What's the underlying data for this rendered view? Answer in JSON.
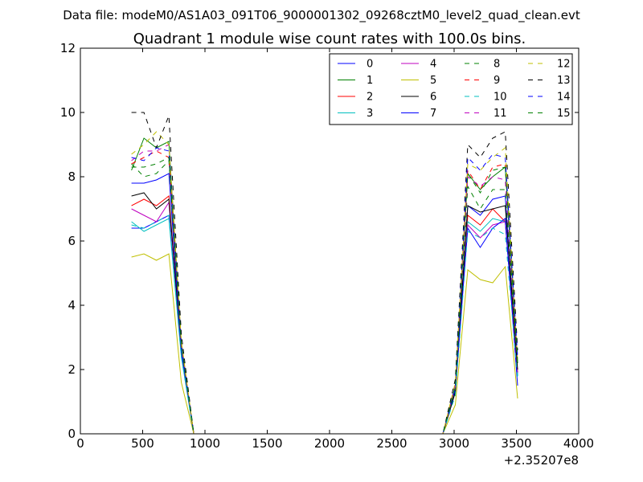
{
  "figure": {
    "suptitle": "Data file: modeM0/AS1A03_091T06_9000001302_09268cztM0_level2_quad_clean.evt"
  },
  "chart_data": {
    "type": "line",
    "title": "Quadrant 1 module wise count rates with 100.0s bins.",
    "xlabel": "",
    "ylabel": "",
    "x_offset_label": "+2.35207e8",
    "xlim": [
      0,
      4000
    ],
    "ylim": [
      0,
      12
    ],
    "xticks": [
      0,
      500,
      1000,
      1500,
      2000,
      2500,
      3000,
      3500,
      4000
    ],
    "yticks": [
      0,
      2,
      4,
      6,
      8,
      10,
      12
    ],
    "grid": false,
    "legend_position": "top-right",
    "legend_columns": 4,
    "x": [
      410,
      510,
      610,
      710,
      810,
      910,
      1010,
      1510,
      2010,
      2510,
      2910,
      3010,
      3110,
      3210,
      3310,
      3410,
      3510
    ],
    "series": [
      {
        "name": "0",
        "color": "#0000ff",
        "dash": "solid",
        "values": [
          6.4,
          6.4,
          6.6,
          6.8,
          2.5,
          0,
          0,
          0,
          0,
          0,
          0,
          1.4,
          7.1,
          6.8,
          7.3,
          7.4,
          1.8
        ]
      },
      {
        "name": "1",
        "color": "#008000",
        "dash": "solid",
        "values": [
          8.2,
          9.2,
          8.9,
          9.1,
          2.8,
          0,
          0,
          0,
          0,
          0,
          0,
          1.4,
          8.1,
          7.6,
          8.0,
          8.3,
          2.2
        ]
      },
      {
        "name": "2",
        "color": "#ff0000",
        "dash": "solid",
        "values": [
          7.1,
          7.3,
          7.1,
          7.4,
          2.6,
          0,
          0,
          0,
          0,
          0,
          0,
          1.3,
          6.8,
          6.5,
          7.0,
          6.6,
          1.9
        ]
      },
      {
        "name": "3",
        "color": "#00bfbf",
        "dash": "solid",
        "values": [
          6.6,
          6.3,
          6.5,
          6.7,
          2.4,
          0,
          0,
          0,
          0,
          0,
          0,
          1.3,
          6.6,
          6.3,
          6.7,
          6.6,
          1.8
        ]
      },
      {
        "name": "4",
        "color": "#bf00bf",
        "dash": "solid",
        "values": [
          7.0,
          6.8,
          6.6,
          7.2,
          2.6,
          0,
          0,
          0,
          0,
          0,
          0,
          1.3,
          6.5,
          6.1,
          6.5,
          6.6,
          1.9
        ]
      },
      {
        "name": "5",
        "color": "#bfbf00",
        "dash": "solid",
        "values": [
          5.5,
          5.6,
          5.4,
          5.6,
          1.6,
          0,
          0,
          0,
          0,
          0,
          0,
          0.9,
          5.1,
          4.8,
          4.7,
          5.2,
          1.1
        ]
      },
      {
        "name": "6",
        "color": "#000000",
        "dash": "solid",
        "values": [
          7.4,
          7.5,
          7.0,
          7.3,
          2.7,
          0,
          0,
          0,
          0,
          0,
          0,
          1.3,
          7.1,
          6.9,
          7.0,
          7.1,
          2.0
        ]
      },
      {
        "name": "7",
        "color": "#0000ff",
        "dash": "solid",
        "values": [
          7.8,
          7.8,
          7.9,
          8.1,
          2.6,
          0,
          0,
          0,
          0,
          0,
          0,
          1.4,
          6.4,
          5.8,
          6.4,
          6.7,
          1.5
        ]
      },
      {
        "name": "8",
        "color": "#008000",
        "dash": "dashed",
        "values": [
          8.4,
          8.0,
          8.1,
          8.5,
          2.7,
          0,
          0,
          0,
          0,
          0,
          0,
          1.4,
          7.7,
          7.0,
          7.6,
          7.6,
          2.1
        ]
      },
      {
        "name": "9",
        "color": "#ff0000",
        "dash": "dashed",
        "values": [
          8.4,
          8.6,
          8.8,
          8.6,
          2.8,
          0,
          0,
          0,
          0,
          0,
          0,
          1.5,
          8.2,
          7.6,
          8.3,
          8.4,
          2.3
        ]
      },
      {
        "name": "10",
        "color": "#00bfbf",
        "dash": "dashed",
        "values": [
          6.5,
          6.4,
          6.6,
          6.8,
          2.4,
          0,
          0,
          0,
          0,
          0,
          0,
          1.2,
          6.3,
          6.1,
          6.4,
          6.2,
          1.7
        ]
      },
      {
        "name": "11",
        "color": "#bf00bf",
        "dash": "dashed",
        "values": [
          8.5,
          8.8,
          8.8,
          9.0,
          2.8,
          0,
          0,
          0,
          0,
          0,
          0,
          1.5,
          8.0,
          7.7,
          8.0,
          7.9,
          2.2
        ]
      },
      {
        "name": "12",
        "color": "#bfbf00",
        "dash": "dashed",
        "values": [
          8.7,
          9.0,
          9.4,
          9.0,
          2.9,
          0,
          0,
          0,
          0,
          0,
          0,
          1.6,
          8.4,
          8.2,
          8.6,
          8.9,
          2.3
        ]
      },
      {
        "name": "13",
        "color": "#000000",
        "dash": "dashed",
        "values": [
          10.0,
          10.0,
          8.9,
          9.9,
          3.1,
          0,
          0,
          0,
          0,
          0,
          0,
          1.7,
          9.0,
          8.6,
          9.2,
          9.4,
          2.6
        ]
      },
      {
        "name": "14",
        "color": "#0000ff",
        "dash": "dashed",
        "values": [
          8.6,
          8.5,
          8.9,
          8.8,
          2.8,
          0,
          0,
          0,
          0,
          0,
          0,
          1.5,
          8.6,
          8.2,
          8.7,
          8.6,
          2.4
        ]
      },
      {
        "name": "15",
        "color": "#008000",
        "dash": "dashed",
        "values": [
          8.3,
          8.3,
          8.4,
          8.6,
          2.8,
          0,
          0,
          0,
          0,
          0,
          0,
          1.5,
          8.1,
          7.5,
          8.2,
          8.3,
          2.2
        ]
      }
    ]
  }
}
